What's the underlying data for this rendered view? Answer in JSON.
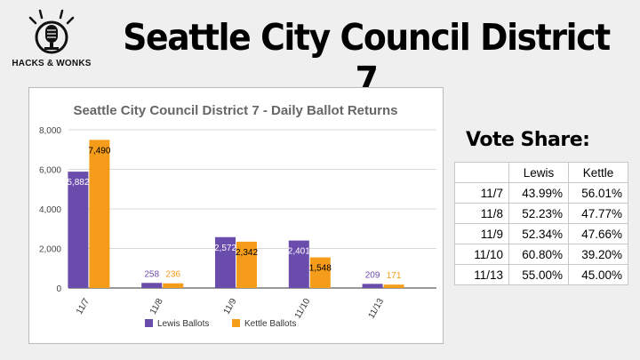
{
  "page": {
    "title": "Seattle City Council District 7",
    "logo_text": "HACKS & WONKS"
  },
  "colors": {
    "lewis": "#6a4cac",
    "kettle": "#f59c1a",
    "grid": "#d9d9d9",
    "background": "#efefef"
  },
  "chart_data": {
    "type": "bar",
    "title": "Seattle City Council District 7 - Daily Ballot Returns",
    "categories": [
      "11/7",
      "11/8",
      "11/9",
      "11/10",
      "11/13"
    ],
    "series": [
      {
        "name": "Lewis Ballots",
        "values": [
          5882,
          258,
          2572,
          2401,
          209
        ],
        "labels": [
          "5,882",
          "258",
          "2,572",
          "2,401",
          "209"
        ],
        "color": "#6a4cac"
      },
      {
        "name": "Kettle Ballots",
        "values": [
          7490,
          236,
          2342,
          1548,
          171
        ],
        "labels": [
          "7,490",
          "236",
          "2,342",
          "1,548",
          "171"
        ],
        "color": "#f59c1a"
      }
    ],
    "yticks": [
      "0",
      "2,000",
      "4,000",
      "6,000",
      "8,000"
    ],
    "ylim": [
      0,
      8000
    ],
    "xlabel": "",
    "ylabel": "",
    "grid": true,
    "legend_position": "bottom"
  },
  "vote_share": {
    "title": "Vote Share:",
    "columns": [
      "",
      "Lewis",
      "Kettle"
    ],
    "rows": [
      {
        "date": "11/7",
        "lewis": "43.99%",
        "kettle": "56.01%"
      },
      {
        "date": "11/8",
        "lewis": "52.23%",
        "kettle": "47.77%"
      },
      {
        "date": "11/9",
        "lewis": "52.34%",
        "kettle": "47.66%"
      },
      {
        "date": "11/10",
        "lewis": "60.80%",
        "kettle": "39.20%"
      },
      {
        "date": "11/13",
        "lewis": "55.00%",
        "kettle": "45.00%"
      }
    ]
  }
}
